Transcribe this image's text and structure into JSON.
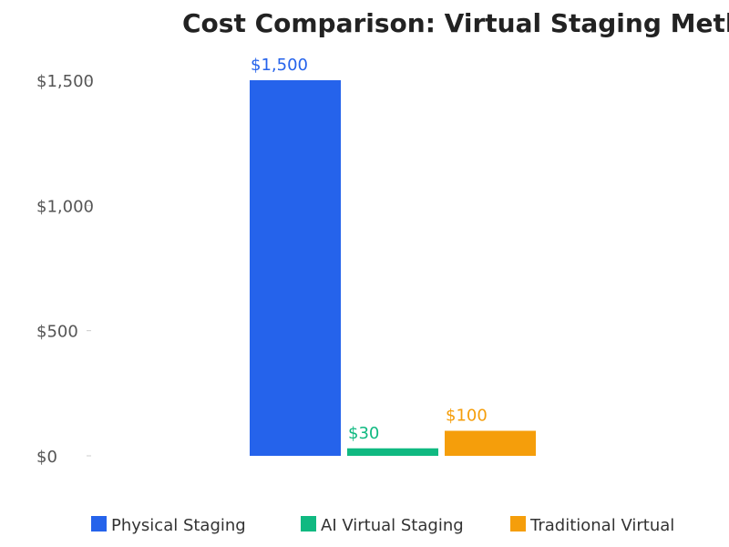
{
  "chart_data": {
    "type": "bar",
    "title": "Cost Comparison: Virtual Staging Meth",
    "xlabel": "",
    "ylabel": "",
    "ylim": [
      0,
      1500
    ],
    "y_ticks": [
      0,
      500,
      1000,
      1500
    ],
    "y_tick_labels": [
      "$0",
      "$500",
      "$1,000",
      "$1,500"
    ],
    "grid": false,
    "legend_position": "bottom",
    "series": [
      {
        "name": "Physical Staging",
        "value": 1500,
        "label": "$1,500",
        "color": "#2563eb"
      },
      {
        "name": "AI Virtual Staging",
        "value": 30,
        "label": "$30",
        "color": "#10b981"
      },
      {
        "name": "Traditional Virtual",
        "value": 100,
        "label": "$100",
        "color": "#f59e0b"
      }
    ]
  }
}
